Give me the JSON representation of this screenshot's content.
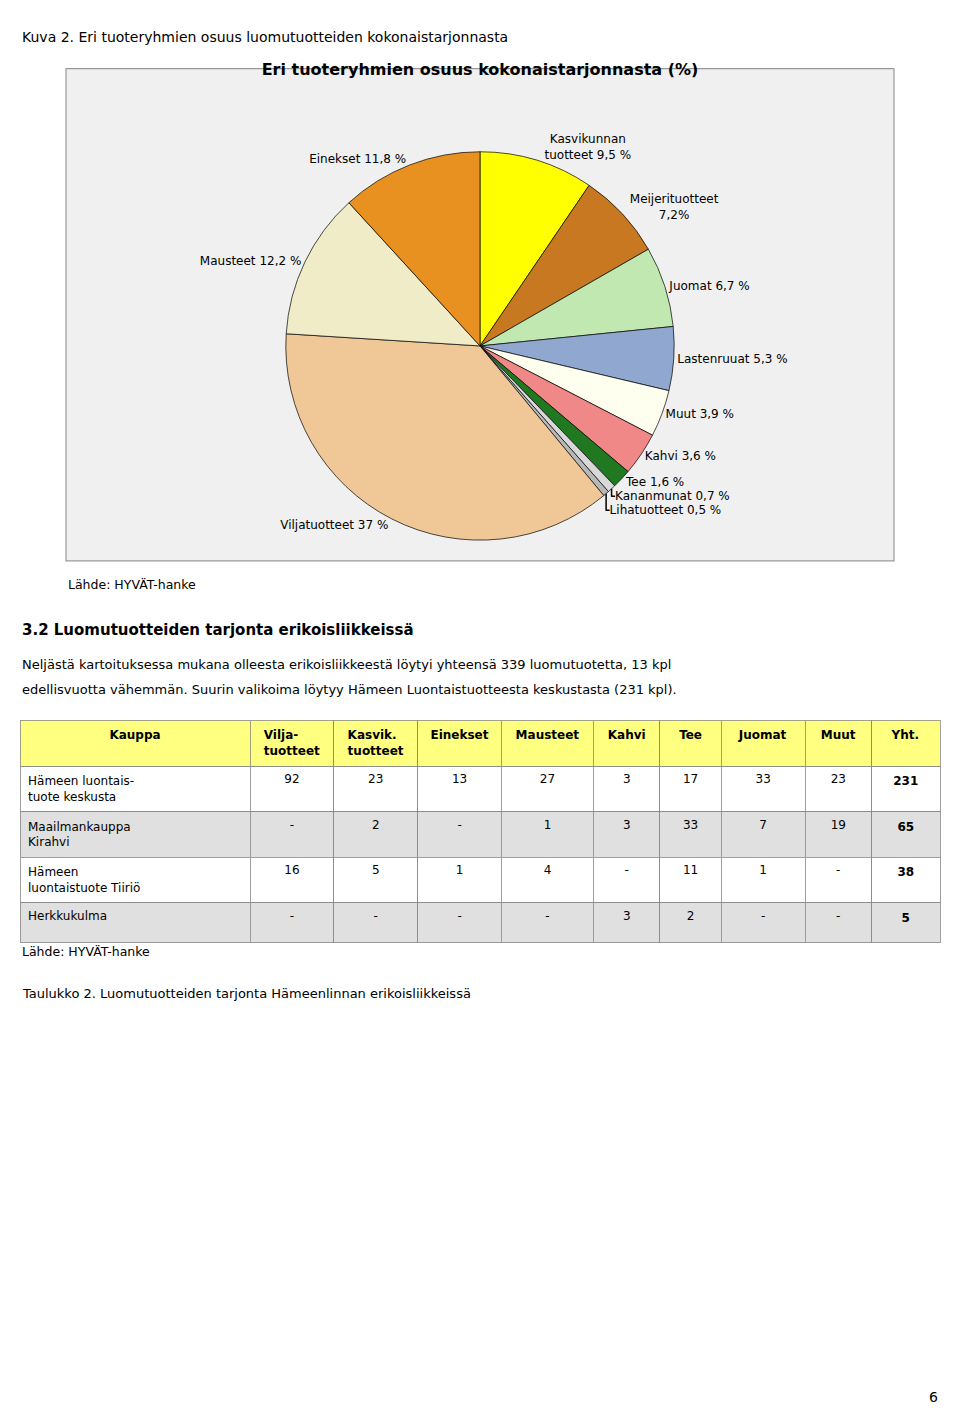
{
  "chart_data": [
    {
      "type": "pie",
      "title": "Eri tuoteryhmien osuus kokonaistarjonnasta (%)",
      "categories": [
        "Kasvikunnan\ntuotteet 9,5 %",
        "Meijerituotteet\n7,2%",
        "Juomat 6,7 %",
        "Lastenruuat 5,3 %",
        "Muut 3,9 %",
        "Kahvi 3,6 %",
        "Tee 1,6 %",
        "Kananmunat 0,7 %",
        "Lihatuotteet 0,5 %",
        "Viljatuotteet 37 %",
        "Mausteet 12,2 %",
        "Einekset 11,8 %"
      ],
      "values": [
        9.5,
        7.2,
        6.7,
        5.3,
        3.9,
        3.6,
        1.6,
        0.7,
        0.5,
        37.0,
        12.2,
        11.8
      ],
      "colors": [
        "#FFFF00",
        "#C87820",
        "#C0E8B0",
        "#90A8D0",
        "#FFFFF0",
        "#F08888",
        "#207820",
        "#D8D8D8",
        "#B8B8B8",
        "#F0C898",
        "#F0ECC8",
        "#E89020"
      ],
      "annotations": [
        "Kuva 2. Eri tuoteryhmien osuus luomutuotteiden kokonaistarjonnasta",
        "Lähde: HYVÄT-hanke",
        "3.2 Luomutuotteiden tarjonta erikoisliikkeissä",
        "Neljästä kartoituksessa mukana olleesta erikoisliikkeestä löytyi yhteensä 339 luomutuotetta, 13 kpl",
        "edellisvuotta vähemmän. Suurin valikoima löytyy Hämeen Luontaistuotteesta keskustasta (231 kpl)."
      ]
    },
    {
      "type": "table",
      "header": [
        "Kauppa",
        "Vilja-\ntuotteet",
        "Kasvik.\ntuotteet",
        "Einekset",
        "Mausteet",
        "Kahvi",
        "Tee",
        "Juomat",
        "Muut",
        "Yht."
      ],
      "rows": [
        [
          "Hämeen luontais-\ntuote keskusta",
          "92",
          "23",
          "13",
          "27",
          "3",
          "17",
          "33",
          "23",
          "231"
        ],
        [
          "Maailmankauppa\nKirahvi",
          "-",
          "2",
          "-",
          "1",
          "3",
          "33",
          "7",
          "19",
          "65"
        ],
        [
          "Hämeen\nluontaistuote Tiiriö",
          "16",
          "5",
          "1",
          "4",
          "-",
          "11",
          "1",
          "-",
          "38"
        ],
        [
          "Herkkukulma",
          "-",
          "-",
          "-",
          "-",
          "3",
          "2",
          "-",
          "-",
          "5"
        ]
      ],
      "colors": [
        "#FFFF80",
        "#FFFFFF",
        "#E0E0E0"
      ],
      "annotations": [
        "Lähde: HYVÄT-hanke",
        "Taulukko 2. Luomutuotteiden tarjonta Hämeenlinnan erikoisliikkeissä",
        "6"
      ]
    }
  ]
}
